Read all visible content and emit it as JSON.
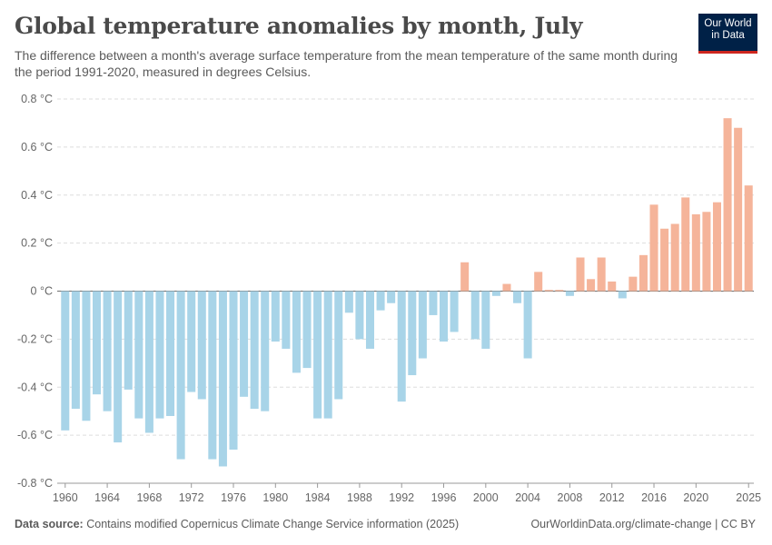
{
  "header": {
    "title": "Global temperature anomalies by month, July",
    "subtitle": "The difference between a month's average surface temperature from the mean temperature of the same month during the period 1991-2020, measured in degrees Celsius.",
    "logo_line1": "Our World",
    "logo_line2": "in Data"
  },
  "footer": {
    "source_label": "Data source:",
    "source_text": "Contains modified Copernicus Climate Change Service information (2025)",
    "credit": "OurWorldinData.org/climate-change | CC BY"
  },
  "colors": {
    "negative": "#a8d4e8",
    "positive": "#f5b49a",
    "grid": "#dddddd",
    "zero_line": "#6f6f6f"
  },
  "chart_data": {
    "type": "bar",
    "title": "Global temperature anomalies by month, July",
    "xlabel": "",
    "ylabel": "°C",
    "ylim": [
      -0.8,
      0.8
    ],
    "yticks": [
      0.8,
      0.6,
      0.4,
      0.2,
      0,
      -0.2,
      -0.4,
      -0.6,
      -0.8
    ],
    "ytick_labels": [
      "0.8 °C",
      "0.6 °C",
      "0.4 °C",
      "0.2 °C",
      "0 °C",
      "-0.2 °C",
      "-0.4 °C",
      "-0.6 °C",
      "-0.8 °C"
    ],
    "xticks": [
      1960,
      1964,
      1968,
      1972,
      1976,
      1980,
      1984,
      1988,
      1992,
      1996,
      2000,
      2004,
      2008,
      2012,
      2016,
      2020,
      2025
    ],
    "categories": [
      1960,
      1961,
      1962,
      1963,
      1964,
      1965,
      1966,
      1967,
      1968,
      1969,
      1970,
      1971,
      1972,
      1973,
      1974,
      1975,
      1976,
      1977,
      1978,
      1979,
      1980,
      1981,
      1982,
      1983,
      1984,
      1985,
      1986,
      1987,
      1988,
      1989,
      1990,
      1991,
      1992,
      1993,
      1994,
      1995,
      1996,
      1997,
      1998,
      1999,
      2000,
      2001,
      2002,
      2003,
      2004,
      2005,
      2006,
      2007,
      2008,
      2009,
      2010,
      2011,
      2012,
      2013,
      2014,
      2015,
      2016,
      2017,
      2018,
      2019,
      2020,
      2021,
      2022,
      2023,
      2024,
      2025
    ],
    "values": [
      -0.58,
      -0.49,
      -0.54,
      -0.43,
      -0.5,
      -0.63,
      -0.41,
      -0.53,
      -0.59,
      -0.53,
      -0.52,
      -0.7,
      -0.42,
      -0.45,
      -0.7,
      -0.73,
      -0.66,
      -0.44,
      -0.49,
      -0.5,
      -0.21,
      -0.24,
      -0.34,
      -0.32,
      -0.53,
      -0.53,
      -0.45,
      -0.09,
      -0.2,
      -0.24,
      -0.08,
      -0.05,
      -0.46,
      -0.35,
      -0.28,
      -0.1,
      -0.21,
      -0.17,
      0.12,
      -0.2,
      -0.24,
      -0.02,
      0.03,
      -0.05,
      -0.28,
      0.08,
      0.005,
      0.005,
      -0.02,
      0.14,
      0.05,
      0.14,
      0.04,
      -0.03,
      0.06,
      0.15,
      0.36,
      0.26,
      0.28,
      0.39,
      0.32,
      0.33,
      0.37,
      0.72,
      0.68,
      0.44
    ]
  }
}
